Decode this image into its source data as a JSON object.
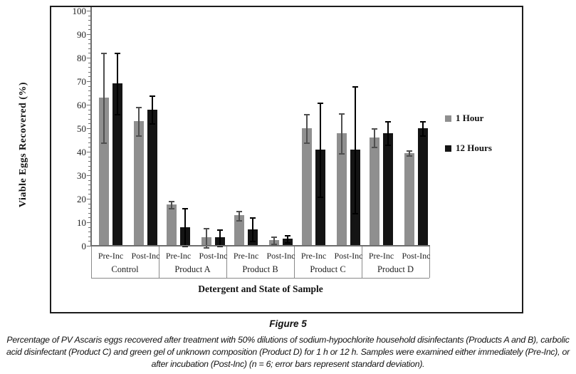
{
  "figure": {
    "label": "Figure 5",
    "caption_lines": [
      "Percentage of PV Ascaris eggs recovered after treatment with 50% dilutions of sodium-hypochlorite household disinfectants (Products A and B), carbolic",
      "acid disinfectant (Product C) and green gel of unknown composition (Product D) for 1 h or 12 h. Samples were examined either immediately (Pre-Inc), or",
      "after incubation (Post-Inc) (n = 6; error bars represent standard deviation)."
    ]
  },
  "chart_data": {
    "type": "bar",
    "title": "",
    "ylabel": "Viable Eggs Recovered (%)",
    "xlabel": "Detergent and State of Sample",
    "ylim": [
      0,
      100
    ],
    "y_major_step": 10,
    "y_minor_step": 2,
    "grid": false,
    "legend_position": "right-outside",
    "groups": [
      "Control",
      "Product A",
      "Product B",
      "Product C",
      "Product D"
    ],
    "states_per_group": [
      "Pre-Inc",
      "Post-Inc"
    ],
    "category_order": [
      "Control Pre-Inc",
      "Control Post-Inc",
      "Product A Pre-Inc",
      "Product A Post-Inc",
      "Product B Pre-Inc",
      "Product B Post-Inc",
      "Product C Pre-Inc",
      "Product C Post-Inc",
      "Product D Pre-Inc",
      "Product D Post-Inc"
    ],
    "error_bars": "standard deviation",
    "series": [
      {
        "name": "1 Hour",
        "color": "#8f8f8f",
        "error_color": "#4f4f4f",
        "values": [
          63,
          53,
          17.5,
          3.5,
          13,
          2.5,
          50,
          48,
          46,
          39.5
        ],
        "errors": [
          19,
          6,
          1.5,
          4,
          2,
          1.5,
          6,
          8.5,
          4,
          1
        ]
      },
      {
        "name": "12 Hours",
        "color": "#141414",
        "error_color": "#000000",
        "values": [
          69,
          58,
          8,
          3.5,
          7,
          3,
          41,
          41,
          48,
          50
        ],
        "errors": [
          13,
          6,
          8,
          3.5,
          5,
          1.5,
          20,
          27,
          5,
          3
        ]
      }
    ]
  }
}
